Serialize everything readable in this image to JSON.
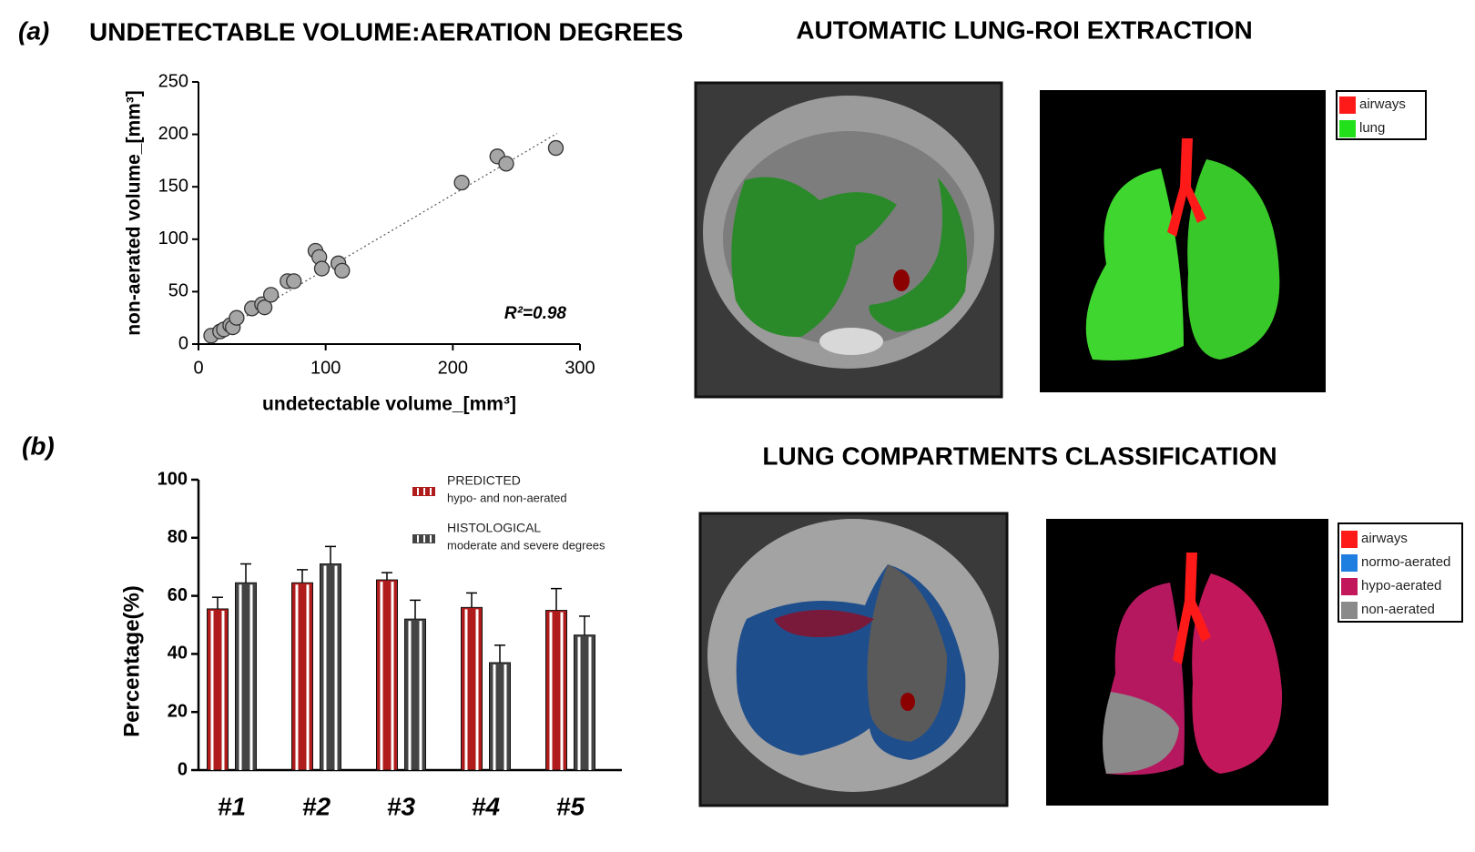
{
  "chart_data": [
    {
      "type": "scatter",
      "title": "UNDETECTABLE VOLUME:AERATION DEGREES",
      "x_label": "undetectable volume_[mm³]",
      "y_label": "non-aerated volume_[mm³]",
      "x": [
        10,
        17,
        20,
        25,
        27,
        30,
        42,
        50,
        52,
        57,
        70,
        75,
        92,
        95,
        97,
        110,
        113,
        207,
        235,
        242,
        281
      ],
      "values": [
        8,
        12,
        14,
        18,
        16,
        25,
        34,
        38,
        35,
        47,
        60,
        60,
        89,
        83,
        72,
        77,
        70,
        154,
        179,
        172,
        187
      ],
      "color": "#a6a6a6",
      "trendline": {
        "x": [
          10,
          282
        ],
        "values": [
          7,
          201
        ]
      },
      "annotation": "R²=0.98",
      "xlim": [
        0,
        300
      ],
      "xticks": [
        0,
        100,
        200,
        300
      ],
      "ylim": [
        0,
        250
      ],
      "yticks": [
        0,
        50,
        100,
        150,
        200,
        250
      ]
    },
    {
      "type": "bar",
      "y_label": "Percentage(%)",
      "categories": [
        "#1",
        "#2",
        "#3",
        "#4",
        "#5"
      ],
      "series": [
        {
          "name": "PREDICTED",
          "description": "hypo- and non-aerated",
          "color": "#b01c1c",
          "values": [
            55.5,
            64.5,
            65.5,
            56,
            55
          ],
          "errors": [
            4,
            4.5,
            2.5,
            5,
            7.5
          ]
        },
        {
          "name": "HISTOLOGICAL",
          "description": "moderate and severe degrees",
          "color": "#444444",
          "values": [
            64.5,
            71,
            52,
            37,
            46.5
          ],
          "errors": [
            6.5,
            6,
            6.5,
            6,
            6.5
          ]
        }
      ],
      "ylim": [
        0,
        100
      ],
      "yticks": [
        0,
        20,
        40,
        60,
        80,
        100
      ]
    }
  ],
  "figure": {
    "panel_a": "(a)",
    "panel_b": "(b)",
    "roi_title": "AUTOMATIC LUNG-ROI EXTRACTION",
    "compartments_title": "LUNG COMPARTMENTS CLASSIFICATION",
    "roi_legend": [
      {
        "label": "airways",
        "color": "#ff1a1a"
      },
      {
        "label": "lung",
        "color": "#22e01a"
      }
    ],
    "compartments_legend": [
      {
        "label": "airways",
        "color": "#ff1a1a"
      },
      {
        "label": "normo-aerated",
        "color": "#1f7fe0"
      },
      {
        "label": "hypo-aerated",
        "color": "#c2185b"
      },
      {
        "label": "non-aerated",
        "color": "#8a8a8a"
      }
    ]
  }
}
